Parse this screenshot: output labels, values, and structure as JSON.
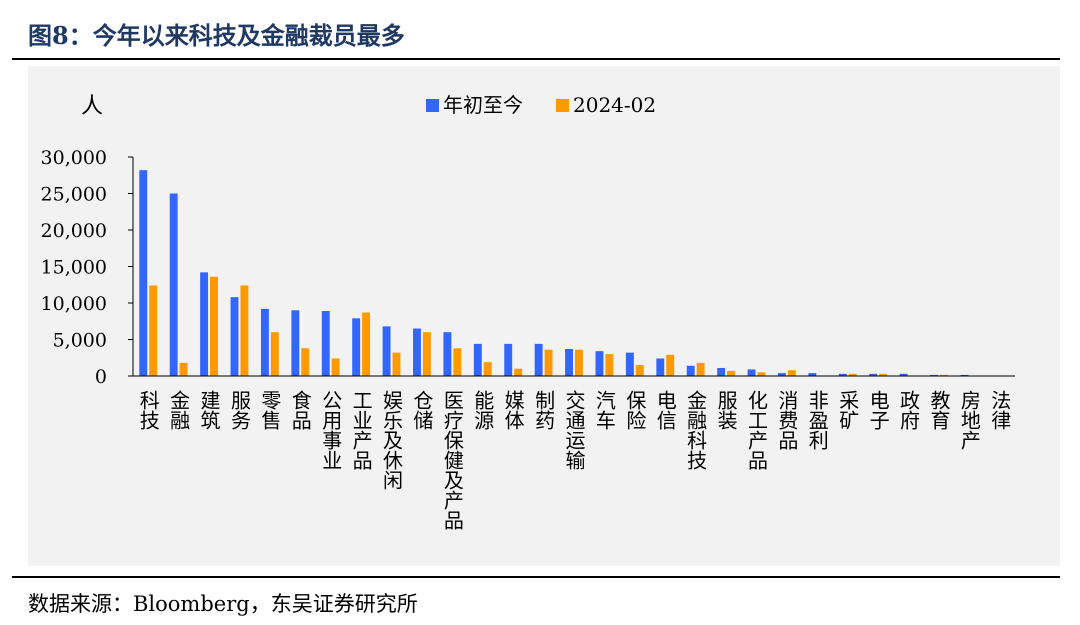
{
  "figure": {
    "title": "图8：今年以来科技及金融裁员最多",
    "source": "数据来源：Bloomberg，东吴证券研究所"
  },
  "chart_data": {
    "type": "bar",
    "title": "",
    "xlabel": "",
    "ylabel": "人",
    "ylim": [
      0,
      30000
    ],
    "yticks": [
      0,
      5000,
      10000,
      15000,
      20000,
      25000,
      30000
    ],
    "ytick_labels": [
      "0",
      "5,000",
      "10,000",
      "15,000",
      "20,000",
      "25,000",
      "30,000"
    ],
    "grid": false,
    "legend_position": "top-center",
    "categories": [
      "科技",
      "金融",
      "建筑",
      "服务",
      "零售",
      "食品",
      "公用事业",
      "工业产品",
      "娱乐及休闲",
      "仓储",
      "医疗保健及产品",
      "能源",
      "媒体",
      "制药",
      "交通运输",
      "汽车",
      "保险",
      "电信",
      "金融科技",
      "服装",
      "化工产品",
      "消费品",
      "非盈利",
      "采矿",
      "电子",
      "政府",
      "教育",
      "房地产",
      "法律"
    ],
    "series": [
      {
        "name": "年初至今",
        "color": "#3366ff",
        "values": [
          28200,
          25000,
          14200,
          10800,
          9200,
          9000,
          8900,
          7900,
          6800,
          6500,
          6000,
          4400,
          4400,
          4400,
          3700,
          3400,
          3200,
          2400,
          1400,
          1100,
          900,
          400,
          400,
          300,
          300,
          300,
          150,
          150,
          50
        ]
      },
      {
        "name": "2024-02",
        "color": "#ff9900",
        "values": [
          12400,
          1800,
          13600,
          12400,
          6000,
          3800,
          2400,
          8700,
          3200,
          6000,
          3800,
          1900,
          1000,
          3600,
          3600,
          3000,
          1500,
          2900,
          1800,
          700,
          500,
          800,
          0,
          300,
          300,
          0,
          150,
          0,
          0
        ]
      }
    ]
  }
}
